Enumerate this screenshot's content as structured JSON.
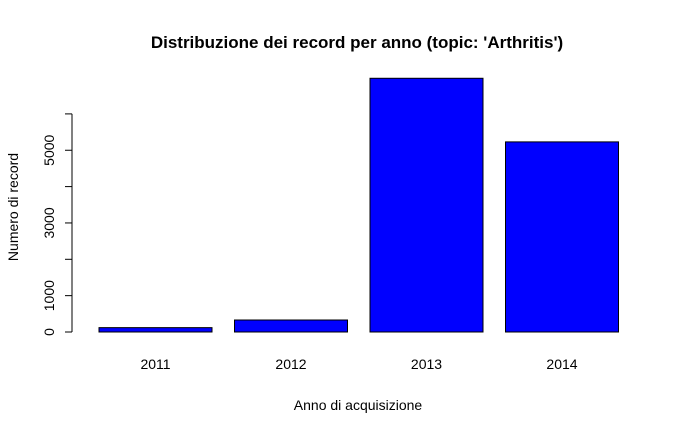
{
  "chart_data": {
    "type": "bar",
    "title": "Distribuzione dei record per anno (topic: 'Arthritis')",
    "xlabel": "Anno di acquisizione",
    "ylabel": "Numero di record",
    "categories": [
      "2011",
      "2012",
      "2013",
      "2014"
    ],
    "values": [
      120,
      330,
      6980,
      5230
    ],
    "bar_color": "#0000ff",
    "ylim": [
      0,
      7100
    ],
    "yticks": [
      0,
      1000,
      2000,
      3000,
      4000,
      5000,
      6000
    ],
    "ytick_labels": [
      "0",
      "1000",
      "",
      "3000",
      "",
      "5000",
      ""
    ],
    "grid": false,
    "legend": "none"
  }
}
